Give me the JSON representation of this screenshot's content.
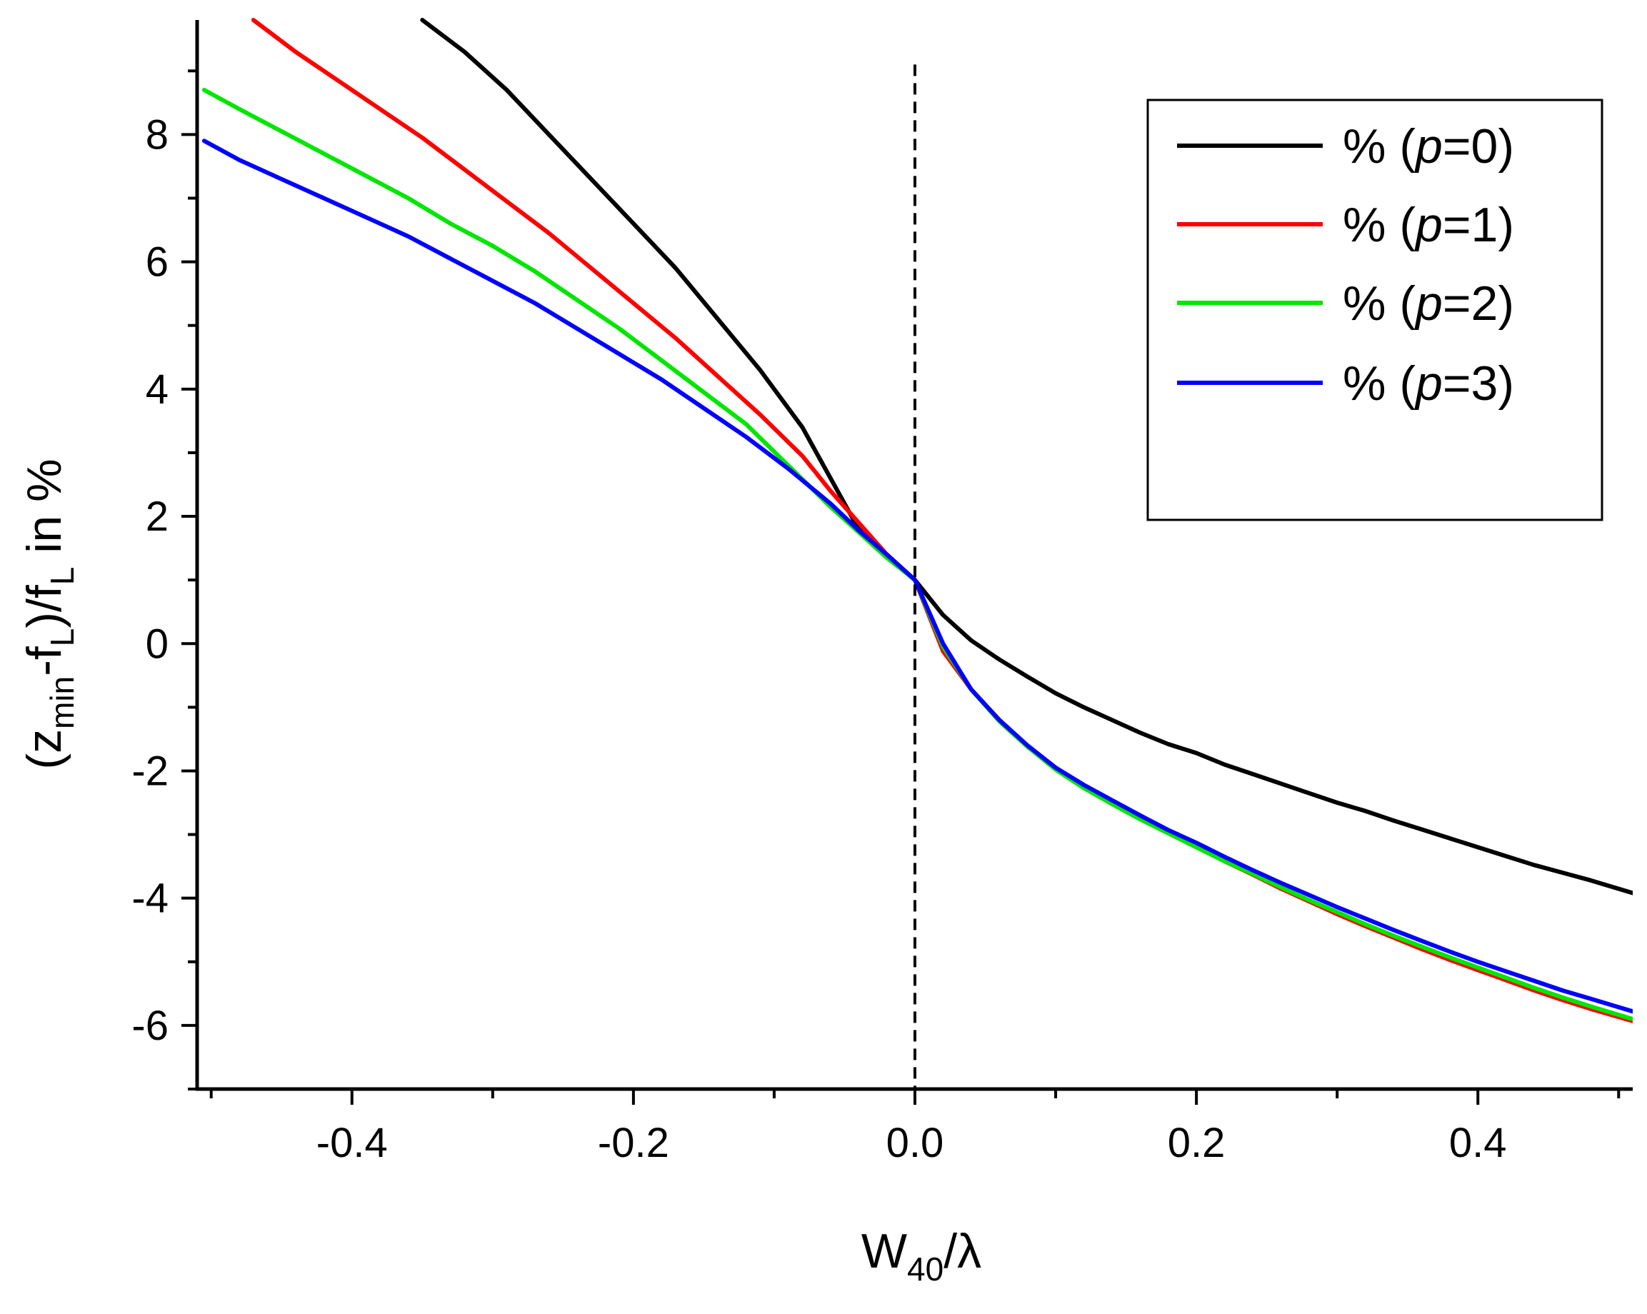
{
  "chart_data": {
    "type": "line",
    "xlabel": {
      "main": "W",
      "sub": "40",
      "tail": "/λ"
    },
    "ylabel": {
      "open": "(z",
      "sub1": "min",
      "mid": "-f",
      "sub2": "L",
      "mid2": ")/f",
      "sub3": "L",
      "tail": " in %"
    },
    "xlim": [
      -0.51,
      0.51
    ],
    "ylim": [
      -7,
      9.8
    ],
    "x_ticks": [
      -0.4,
      -0.2,
      0.0,
      0.2,
      0.4
    ],
    "x_tick_labels": [
      "-0.4",
      "-0.2",
      "0.0",
      "0.2",
      "0.4"
    ],
    "y_ticks": [
      -6,
      -4,
      -2,
      0,
      2,
      4,
      6,
      8
    ],
    "y_tick_labels": [
      "-6",
      "-4",
      "-2",
      "0",
      "2",
      "4",
      "6",
      "8"
    ],
    "grid": false,
    "vline": {
      "x": 0.0,
      "style": "dashed"
    },
    "legend_position": "top-right",
    "series": [
      {
        "name": "% (p=0)",
        "legend_prefix": "% (",
        "legend_italic": "p",
        "legend_suffix": "=0)",
        "color": "#000000",
        "x": [
          -0.35,
          -0.32,
          -0.29,
          -0.26,
          -0.23,
          -0.2,
          -0.17,
          -0.14,
          -0.11,
          -0.08,
          -0.06,
          -0.04,
          -0.02,
          0.0,
          0.02,
          0.04,
          0.06,
          0.08,
          0.1,
          0.12,
          0.14,
          0.16,
          0.18,
          0.2,
          0.22,
          0.24,
          0.26,
          0.28,
          0.3,
          0.32,
          0.34,
          0.36,
          0.38,
          0.4,
          0.42,
          0.44,
          0.46,
          0.48,
          0.51
        ],
        "y": [
          9.8,
          9.3,
          8.7,
          8.0,
          7.3,
          6.6,
          5.9,
          5.1,
          4.3,
          3.4,
          2.6,
          1.8,
          1.4,
          1.0,
          0.45,
          0.05,
          -0.25,
          -0.52,
          -0.78,
          -1.0,
          -1.2,
          -1.4,
          -1.58,
          -1.72,
          -1.9,
          -2.05,
          -2.2,
          -2.35,
          -2.5,
          -2.63,
          -2.78,
          -2.92,
          -3.06,
          -3.2,
          -3.34,
          -3.48,
          -3.6,
          -3.72,
          -3.92
        ]
      },
      {
        "name": "% (p=1)",
        "legend_prefix": "% (",
        "legend_italic": "p",
        "legend_suffix": "=1)",
        "color": "#ff0000",
        "x": [
          -0.47,
          -0.44,
          -0.41,
          -0.38,
          -0.35,
          -0.32,
          -0.29,
          -0.26,
          -0.23,
          -0.2,
          -0.17,
          -0.14,
          -0.11,
          -0.08,
          -0.06,
          -0.04,
          -0.02,
          0.0,
          0.02,
          0.04,
          0.06,
          0.08,
          0.1,
          0.12,
          0.14,
          0.16,
          0.18,
          0.2,
          0.22,
          0.24,
          0.26,
          0.28,
          0.3,
          0.32,
          0.34,
          0.36,
          0.38,
          0.4,
          0.42,
          0.44,
          0.46,
          0.48,
          0.51
        ],
        "y": [
          9.8,
          9.3,
          8.85,
          8.4,
          7.95,
          7.45,
          6.95,
          6.45,
          5.9,
          5.35,
          4.8,
          4.2,
          3.6,
          2.95,
          2.4,
          1.9,
          1.4,
          1.0,
          -0.12,
          -0.72,
          -1.2,
          -1.62,
          -1.95,
          -2.24,
          -2.48,
          -2.72,
          -2.95,
          -3.18,
          -3.42,
          -3.63,
          -3.85,
          -4.05,
          -4.25,
          -4.44,
          -4.62,
          -4.8,
          -4.97,
          -5.13,
          -5.29,
          -5.45,
          -5.6,
          -5.74,
          -5.93
        ]
      },
      {
        "name": "% (p=2)",
        "legend_prefix": "% (",
        "legend_italic": "p",
        "legend_suffix": "=2)",
        "color": "#00e600",
        "x": [
          -0.505,
          -0.48,
          -0.45,
          -0.42,
          -0.39,
          -0.36,
          -0.33,
          -0.3,
          -0.27,
          -0.24,
          -0.21,
          -0.18,
          -0.15,
          -0.12,
          -0.09,
          -0.06,
          -0.04,
          -0.02,
          0.0,
          0.02,
          0.04,
          0.06,
          0.08,
          0.1,
          0.12,
          0.14,
          0.16,
          0.18,
          0.2,
          0.22,
          0.24,
          0.26,
          0.28,
          0.3,
          0.32,
          0.34,
          0.36,
          0.38,
          0.4,
          0.42,
          0.44,
          0.46,
          0.48,
          0.51
        ],
        "y": [
          8.7,
          8.4,
          8.05,
          7.7,
          7.35,
          7.0,
          6.6,
          6.25,
          5.85,
          5.4,
          4.95,
          4.45,
          3.95,
          3.45,
          2.8,
          2.15,
          1.75,
          1.35,
          1.0,
          -0.05,
          -0.72,
          -1.22,
          -1.62,
          -1.98,
          -2.27,
          -2.52,
          -2.76,
          -2.98,
          -3.2,
          -3.42,
          -3.62,
          -3.83,
          -4.03,
          -4.22,
          -4.41,
          -4.59,
          -4.76,
          -4.93,
          -5.09,
          -5.25,
          -5.41,
          -5.56,
          -5.7,
          -5.9
        ]
      },
      {
        "name": "% (p=3)",
        "legend_prefix": "% (",
        "legend_italic": "p",
        "legend_suffix": "=3)",
        "color": "#0000ff",
        "x": [
          -0.505,
          -0.48,
          -0.45,
          -0.42,
          -0.39,
          -0.36,
          -0.33,
          -0.3,
          -0.27,
          -0.24,
          -0.21,
          -0.18,
          -0.15,
          -0.12,
          -0.09,
          -0.06,
          -0.04,
          -0.02,
          0.0,
          0.02,
          0.04,
          0.06,
          0.08,
          0.1,
          0.12,
          0.14,
          0.16,
          0.18,
          0.2,
          0.22,
          0.24,
          0.26,
          0.28,
          0.3,
          0.32,
          0.34,
          0.36,
          0.38,
          0.4,
          0.42,
          0.44,
          0.46,
          0.48,
          0.51
        ],
        "y": [
          7.9,
          7.6,
          7.3,
          7.0,
          6.7,
          6.4,
          6.05,
          5.7,
          5.35,
          4.95,
          4.55,
          4.15,
          3.7,
          3.25,
          2.75,
          2.2,
          1.78,
          1.4,
          1.0,
          0.0,
          -0.72,
          -1.2,
          -1.6,
          -1.95,
          -2.22,
          -2.46,
          -2.7,
          -2.93,
          -3.13,
          -3.35,
          -3.56,
          -3.76,
          -3.95,
          -4.14,
          -4.32,
          -4.5,
          -4.67,
          -4.84,
          -5.0,
          -5.15,
          -5.3,
          -5.45,
          -5.58,
          -5.78
        ]
      }
    ]
  }
}
